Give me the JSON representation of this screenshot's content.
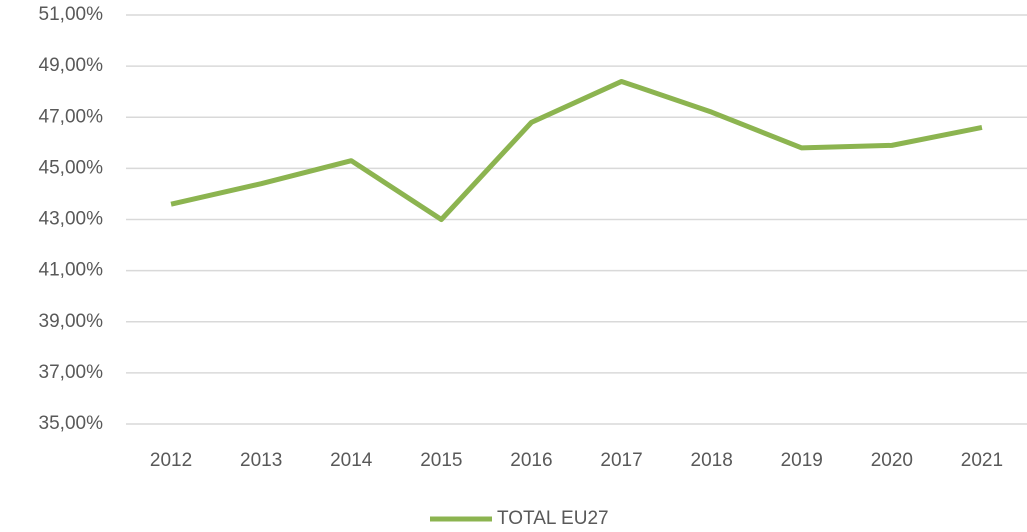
{
  "chart_data": {
    "type": "line",
    "categories": [
      "2012",
      "2013",
      "2014",
      "2015",
      "2016",
      "2017",
      "2018",
      "2019",
      "2020",
      "2021"
    ],
    "series": [
      {
        "name": "TOTAL EU27",
        "color": "#8cb450",
        "values": [
          43.6,
          44.4,
          45.3,
          43.0,
          46.8,
          48.4,
          47.2,
          45.8,
          45.9,
          46.6
        ]
      }
    ],
    "ylim": [
      35,
      51
    ],
    "yticks": [
      {
        "value": 35,
        "label": "35,00%"
      },
      {
        "value": 37,
        "label": "37,00%"
      },
      {
        "value": 39,
        "label": "39,00%"
      },
      {
        "value": 41,
        "label": "41,00%"
      },
      {
        "value": 43,
        "label": "43,00%"
      },
      {
        "value": 45,
        "label": "45,00%"
      },
      {
        "value": 47,
        "label": "47,00%"
      },
      {
        "value": 49,
        "label": "49,00%"
      },
      {
        "value": 51,
        "label": "51,00%"
      }
    ],
    "grid": true,
    "legend": "bottom"
  }
}
